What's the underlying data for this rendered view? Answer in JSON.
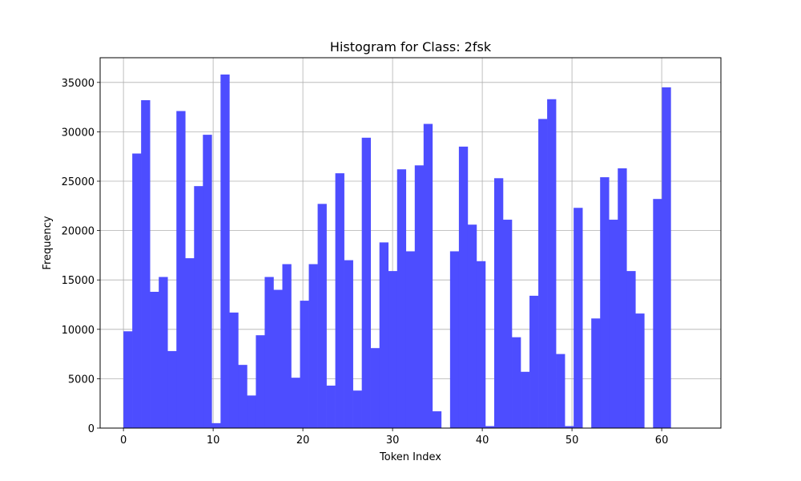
{
  "chart_data": {
    "type": "bar",
    "title": "Histogram for Class: 2fsk",
    "xlabel": "Token Index",
    "ylabel": "Frequency",
    "xlim": [
      -2.6,
      66.6
    ],
    "ylim": [
      0,
      37500
    ],
    "grid": true,
    "bar_color": "#4d4dff",
    "xticks": [
      0,
      10,
      20,
      30,
      40,
      50,
      60
    ],
    "yticks": [
      0,
      5000,
      10000,
      15000,
      20000,
      25000,
      30000,
      35000
    ],
    "bins": {
      "start": 0,
      "width": 0.984,
      "values": [
        9800,
        27800,
        33200,
        13800,
        15300,
        7800,
        32100,
        17200,
        24500,
        29700,
        500,
        35800,
        11700,
        6400,
        3300,
        9400,
        15300,
        14000,
        16600,
        5100,
        12900,
        16600,
        22700,
        4300,
        25800,
        17000,
        3800,
        29400,
        8100,
        18800,
        15900,
        26200,
        17900,
        26600,
        30800,
        1700,
        0,
        17900,
        28500,
        20600,
        16900,
        200,
        25300,
        21100,
        9200,
        5700,
        13400,
        31300,
        33300,
        7500,
        200,
        22300,
        0,
        11100,
        25400,
        21100,
        26300,
        15900,
        11600,
        0,
        23200,
        34500
      ]
    }
  }
}
